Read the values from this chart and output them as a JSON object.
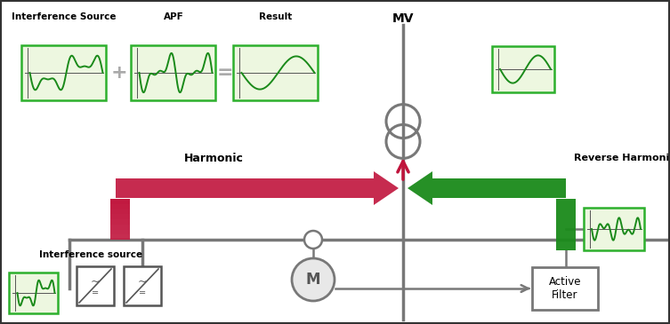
{
  "bg_color": "#ffffff",
  "panel_bg": "#edf7e0",
  "panel_border": "#2db02d",
  "green_wave": "#1a8a1a",
  "dark_red": "#c0143c",
  "dark_green": "#1a8a1a",
  "gray": "#787878",
  "dark_gray": "#555555",
  "plus_eq_color": "#aaaaaa",
  "label_interference_source": "Interference Source",
  "label_apf": "APF",
  "label_result": "Result",
  "label_mv": "MV",
  "label_harmonic": "Harmonic",
  "label_reverse": "Reverse Harmonic Current",
  "label_interference_source2": "Interference source",
  "label_active_filter": "Active\nFilter",
  "figw": 7.53,
  "figh": 3.65,
  "dpi": 100
}
